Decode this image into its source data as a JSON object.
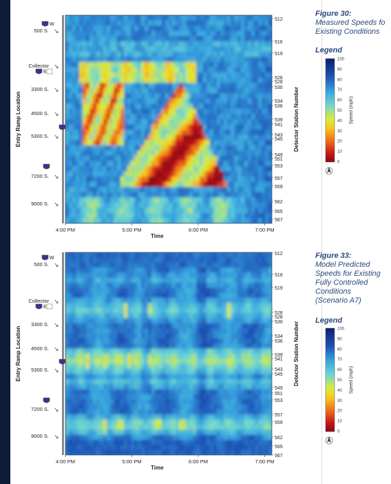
{
  "chart_data": [
    {
      "type": "heatmap",
      "title": "Measured Speeds for Existing Conditions",
      "figure_label": "Figure 30:",
      "xlabel": "Time",
      "ylabel": "Entry Ramp Location",
      "y2label": "Detector Station Number",
      "x_ticks": [
        "4:00 PM",
        "5:00 PM",
        "6:00 PM",
        "7:00 PM"
      ],
      "stations": [
        512,
        516,
        519,
        526,
        528,
        530,
        534,
        536,
        539,
        541,
        543,
        545,
        549,
        551,
        553,
        557,
        559,
        562,
        565,
        567
      ],
      "ramps": [
        {
          "label": "500 S.",
          "shield": "W",
          "sub": ""
        },
        {
          "label": "Collector",
          "shield": "E",
          "sub": ""
        },
        {
          "label": "3300 S.",
          "shield": "",
          "sub": ""
        },
        {
          "label": "4500 S.",
          "shield": "",
          "sub": ""
        },
        {
          "label": "5300 S.",
          "shield": "",
          "sub": ""
        },
        {
          "label": "7200 S.",
          "shield": "",
          "sub": ""
        },
        {
          "label": "9000 S.",
          "shield": "",
          "sub": ""
        }
      ],
      "colorscale": {
        "label": "Speed (mph)",
        "min": 0,
        "max": 100,
        "ticks": [
          100,
          90,
          80,
          70,
          60,
          50,
          40,
          30,
          20,
          10,
          0
        ]
      },
      "legend_title": "Legend"
    },
    {
      "type": "heatmap",
      "title": "Model Predicted Speeds for Existing Fully Controlled Conditions (Scenario A7)",
      "figure_label": "Figure 33:",
      "xlabel": "Time",
      "ylabel": "Entry Ramp Location",
      "y2label": "Detector Station Number",
      "x_ticks": [
        "4:00 PM",
        "5:00 PM",
        "6:00 PM",
        "7:00 PM"
      ],
      "stations": [
        512,
        516,
        519,
        526,
        528,
        530,
        534,
        536,
        539,
        541,
        543,
        545,
        549,
        551,
        553,
        557,
        559,
        562,
        565,
        567
      ],
      "colorscale": {
        "label": "Speed (mph)",
        "min": 0,
        "max": 100,
        "ticks": [
          100,
          90,
          80,
          70,
          60,
          50,
          40,
          30,
          20,
          10,
          0
        ]
      },
      "legend_title": "Legend"
    }
  ],
  "figures": [
    {
      "number": "Figure 30:",
      "caption_lines": [
        "Measured Speeds fo",
        "Existing Conditions"
      ]
    },
    {
      "number": "Figure 33:",
      "caption_lines": [
        "Model Predicted",
        "Speeds for Existing",
        "Fully Controlled",
        "Conditions",
        "(Scenario A7)"
      ]
    }
  ],
  "interstate_shield_top": "80",
  "interstate_shield_mid": "15",
  "interstate_shield_low": "215",
  "colors": {
    "low": "#c0141e",
    "mid": "#f2e11b",
    "high": "#0b2a8a",
    "caption": "#2a4a7c"
  }
}
